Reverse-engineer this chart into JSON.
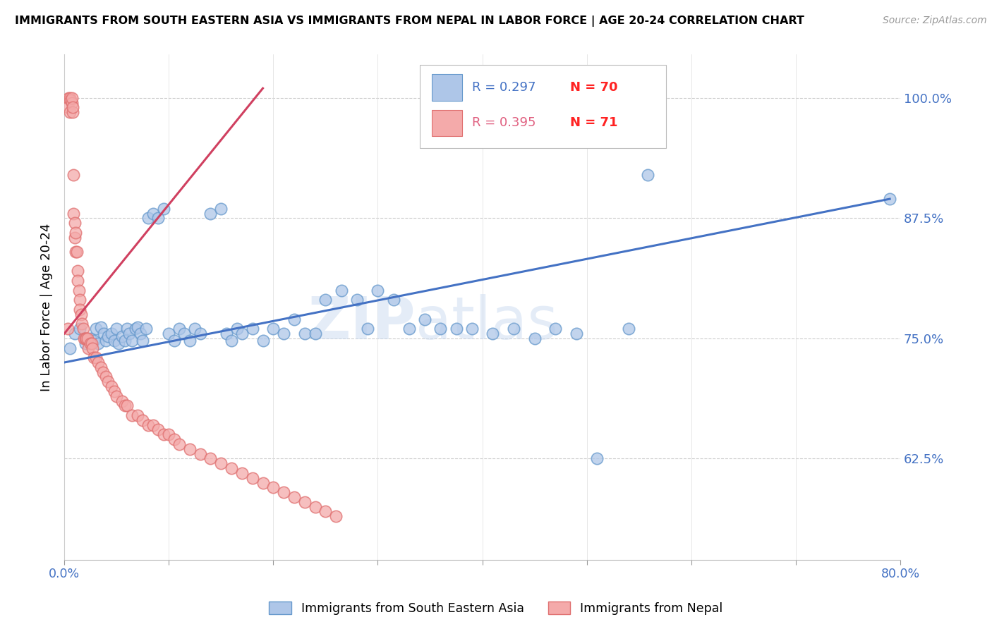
{
  "title": "IMMIGRANTS FROM SOUTH EASTERN ASIA VS IMMIGRANTS FROM NEPAL IN LABOR FORCE | AGE 20-24 CORRELATION CHART",
  "source": "Source: ZipAtlas.com",
  "ylabel": "In Labor Force | Age 20-24",
  "xlim": [
    0.0,
    0.8
  ],
  "ylim": [
    0.52,
    1.045
  ],
  "xticks": [
    0.0,
    0.1,
    0.2,
    0.3,
    0.4,
    0.5,
    0.6,
    0.7,
    0.8
  ],
  "xticklabels": [
    "0.0%",
    "",
    "",
    "",
    "",
    "",
    "",
    "",
    "80.0%"
  ],
  "yticks": [
    0.625,
    0.75,
    0.875,
    1.0
  ],
  "yticklabels": [
    "62.5%",
    "75.0%",
    "87.5%",
    "100.0%"
  ],
  "blue_face_color": "#AEC6E8",
  "blue_edge_color": "#6699CC",
  "pink_face_color": "#F4AAAA",
  "pink_edge_color": "#E07070",
  "blue_line_color": "#4472C4",
  "pink_line_color": "#D04060",
  "watermark": "ZIPatlas",
  "blue_r": "R = 0.297",
  "blue_n": "N = 70",
  "pink_r": "R = 0.395",
  "pink_n": "N = 71",
  "legend_r_blue": "#4472C4",
  "legend_n_red": "#FF2222",
  "legend_r_pink": "#E06080",
  "blue_scatter_x": [
    0.005,
    0.01,
    0.015,
    0.02,
    0.025,
    0.028,
    0.03,
    0.032,
    0.035,
    0.038,
    0.04,
    0.042,
    0.045,
    0.048,
    0.05,
    0.052,
    0.055,
    0.058,
    0.06,
    0.062,
    0.065,
    0.068,
    0.07,
    0.073,
    0.075,
    0.078,
    0.08,
    0.085,
    0.09,
    0.095,
    0.1,
    0.105,
    0.11,
    0.115,
    0.12,
    0.125,
    0.13,
    0.14,
    0.15,
    0.155,
    0.16,
    0.165,
    0.17,
    0.18,
    0.19,
    0.2,
    0.21,
    0.22,
    0.23,
    0.24,
    0.25,
    0.265,
    0.28,
    0.29,
    0.3,
    0.315,
    0.33,
    0.345,
    0.36,
    0.375,
    0.39,
    0.41,
    0.43,
    0.45,
    0.47,
    0.49,
    0.51,
    0.54,
    0.558,
    0.79
  ],
  "blue_scatter_y": [
    0.74,
    0.755,
    0.76,
    0.745,
    0.75,
    0.748,
    0.76,
    0.745,
    0.762,
    0.755,
    0.748,
    0.752,
    0.755,
    0.748,
    0.76,
    0.745,
    0.752,
    0.748,
    0.76,
    0.755,
    0.748,
    0.76,
    0.762,
    0.755,
    0.748,
    0.76,
    0.875,
    0.88,
    0.875,
    0.885,
    0.755,
    0.748,
    0.76,
    0.755,
    0.748,
    0.76,
    0.755,
    0.88,
    0.885,
    0.755,
    0.748,
    0.76,
    0.755,
    0.76,
    0.748,
    0.76,
    0.755,
    0.77,
    0.755,
    0.755,
    0.79,
    0.8,
    0.79,
    0.76,
    0.8,
    0.79,
    0.76,
    0.77,
    0.76,
    0.76,
    0.76,
    0.755,
    0.76,
    0.75,
    0.76,
    0.755,
    0.625,
    0.76,
    0.92,
    0.895
  ],
  "pink_scatter_x": [
    0.003,
    0.004,
    0.005,
    0.005,
    0.006,
    0.007,
    0.007,
    0.008,
    0.008,
    0.009,
    0.009,
    0.01,
    0.01,
    0.011,
    0.011,
    0.012,
    0.013,
    0.013,
    0.014,
    0.015,
    0.015,
    0.016,
    0.017,
    0.018,
    0.019,
    0.02,
    0.021,
    0.022,
    0.023,
    0.025,
    0.026,
    0.027,
    0.028,
    0.03,
    0.032,
    0.035,
    0.037,
    0.04,
    0.042,
    0.045,
    0.048,
    0.05,
    0.055,
    0.058,
    0.06,
    0.065,
    0.07,
    0.075,
    0.08,
    0.085,
    0.09,
    0.095,
    0.1,
    0.105,
    0.11,
    0.12,
    0.13,
    0.14,
    0.15,
    0.16,
    0.17,
    0.18,
    0.19,
    0.2,
    0.21,
    0.22,
    0.23,
    0.24,
    0.25,
    0.26,
    0.003
  ],
  "pink_scatter_y": [
    0.99,
    1.0,
    0.985,
    1.0,
    0.998,
    0.995,
    1.0,
    0.985,
    0.99,
    0.92,
    0.88,
    0.855,
    0.87,
    0.84,
    0.86,
    0.84,
    0.82,
    0.81,
    0.8,
    0.79,
    0.78,
    0.775,
    0.765,
    0.76,
    0.75,
    0.75,
    0.75,
    0.75,
    0.74,
    0.745,
    0.745,
    0.74,
    0.73,
    0.73,
    0.725,
    0.72,
    0.715,
    0.71,
    0.705,
    0.7,
    0.695,
    0.69,
    0.685,
    0.68,
    0.68,
    0.67,
    0.67,
    0.665,
    0.66,
    0.66,
    0.655,
    0.65,
    0.65,
    0.645,
    0.64,
    0.635,
    0.63,
    0.625,
    0.62,
    0.615,
    0.61,
    0.605,
    0.6,
    0.595,
    0.59,
    0.585,
    0.58,
    0.575,
    0.57,
    0.565,
    0.76
  ],
  "blue_line_x": [
    0.0,
    0.79
  ],
  "blue_line_y": [
    0.725,
    0.895
  ],
  "pink_line_x": [
    0.0,
    0.19
  ],
  "pink_line_y": [
    0.755,
    1.01
  ]
}
